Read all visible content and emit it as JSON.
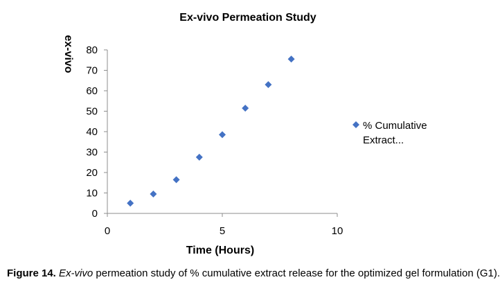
{
  "chart_data": {
    "type": "scatter",
    "title": "Ex-vivo Permeation Study",
    "xlabel": "Time (Hours)",
    "ylabel": "ex-vivo",
    "xlim": [
      0,
      10
    ],
    "ylim": [
      0,
      80
    ],
    "xticks": [
      0,
      5,
      10
    ],
    "yticks": [
      0,
      10,
      20,
      30,
      40,
      50,
      60,
      70,
      80
    ],
    "grid": false,
    "legend_position": "right",
    "series": [
      {
        "name": "% Cumulative Extract...",
        "legend_lines": [
          "% Cumulative",
          "Extract..."
        ],
        "color": "#4472C4",
        "marker": "diamond",
        "x": [
          1,
          2,
          3,
          4,
          5,
          6,
          7,
          8
        ],
        "y": [
          5,
          9.5,
          16.5,
          27.5,
          38.5,
          51.5,
          63,
          75.5
        ]
      }
    ]
  },
  "caption": {
    "label": "Figure 14.",
    "italic": "Ex-vivo",
    "text": "permeation study of % cumulative extract release for the optimized gel formulation (G1)."
  }
}
